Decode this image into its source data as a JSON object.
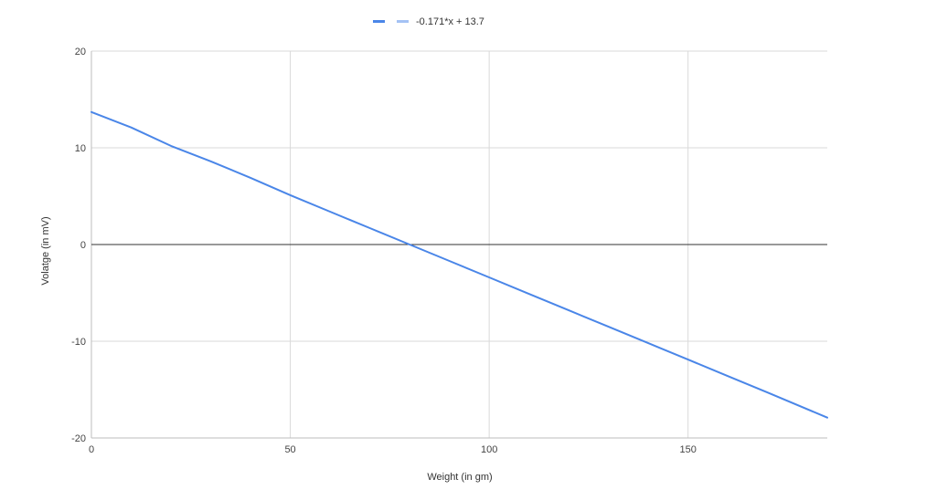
{
  "chart_data": {
    "type": "line",
    "xlabel": "Weight (in gm)",
    "ylabel": "Volatge (in mV)",
    "xlim": [
      0,
      185
    ],
    "ylim": [
      -20,
      20
    ],
    "x_ticks": [
      0,
      50,
      100,
      150
    ],
    "y_ticks": [
      20,
      10,
      0,
      -10,
      -20
    ],
    "x_tick_labels": [
      "0",
      "50",
      "100",
      "150"
    ],
    "y_tick_labels": [
      "20",
      "10",
      "0",
      "-10",
      "-20"
    ],
    "grid": true,
    "legend_position": "top",
    "series": [
      {
        "name": "",
        "color": "#4a86e8",
        "x": [
          0,
          10,
          20,
          30,
          40,
          50,
          60,
          70,
          80,
          90,
          100,
          110,
          120,
          130,
          140,
          150,
          160,
          170,
          185
        ],
        "y": [
          13.7,
          12.1,
          10.2,
          8.6,
          6.9,
          5.1,
          3.4,
          1.7,
          0.0,
          -1.7,
          -3.4,
          -5.1,
          -6.8,
          -8.5,
          -10.2,
          -11.9,
          -13.6,
          -15.3,
          -17.9
        ]
      },
      {
        "name": "-0.171*x + 13.7",
        "color": "#a4c2f4",
        "trendline": true
      }
    ]
  }
}
